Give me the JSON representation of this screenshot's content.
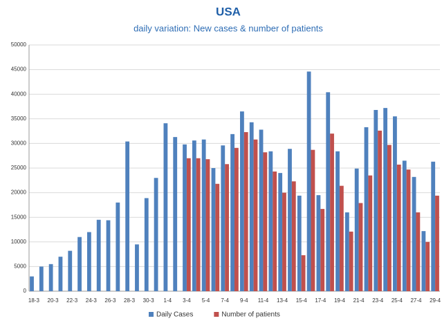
{
  "chart_data": {
    "type": "bar",
    "title": "USA",
    "subtitle": "daily variation: New cases & number of patients",
    "categories": [
      "18-3",
      null,
      "20-3",
      null,
      "22-3",
      null,
      "24-3",
      null,
      "26-3",
      null,
      "28-3",
      null,
      "30-3",
      null,
      "1-4",
      null,
      "3-4",
      null,
      "5-4",
      null,
      "7-4",
      null,
      "9-4",
      null,
      "11-4",
      null,
      "13-4",
      null,
      "15-4",
      null,
      "17-4",
      null,
      "19-4",
      null,
      "21-4",
      null,
      "23-4",
      null,
      "25-4",
      null,
      "27-4",
      null,
      "29-4"
    ],
    "series": [
      {
        "name": "Daily Cases",
        "color": "#4f81bd",
        "values": [
          3000,
          5000,
          5500,
          7000,
          8200,
          11000,
          12000,
          14500,
          14400,
          18000,
          30400,
          9500,
          18900,
          23000,
          34100,
          31300,
          29800,
          30600,
          30800,
          25000,
          29600,
          31900,
          36500,
          34300,
          32800,
          28400,
          24000,
          28900,
          19400,
          44600,
          19500,
          40400,
          28400,
          16000,
          24900,
          33300,
          36800,
          37200,
          35500,
          26500,
          23200,
          12200,
          26300
        ]
      },
      {
        "name": "Number of patients",
        "color": "#c0504d",
        "values": [
          null,
          null,
          null,
          null,
          null,
          null,
          null,
          null,
          null,
          null,
          null,
          null,
          null,
          null,
          null,
          null,
          27000,
          27000,
          26800,
          21800,
          25800,
          29100,
          32300,
          30800,
          28200,
          24300,
          20000,
          22300,
          7300,
          28700,
          16700,
          32000,
          21400,
          12100,
          17900,
          23500,
          32600,
          29700,
          25700,
          24700,
          16000,
          10000,
          19400
        ]
      }
    ],
    "ylim": [
      0,
      50000
    ],
    "yticks": [
      0,
      5000,
      10000,
      15000,
      20000,
      25000,
      30000,
      35000,
      40000,
      45000,
      50000
    ],
    "grid": true,
    "legend": "bottom"
  }
}
